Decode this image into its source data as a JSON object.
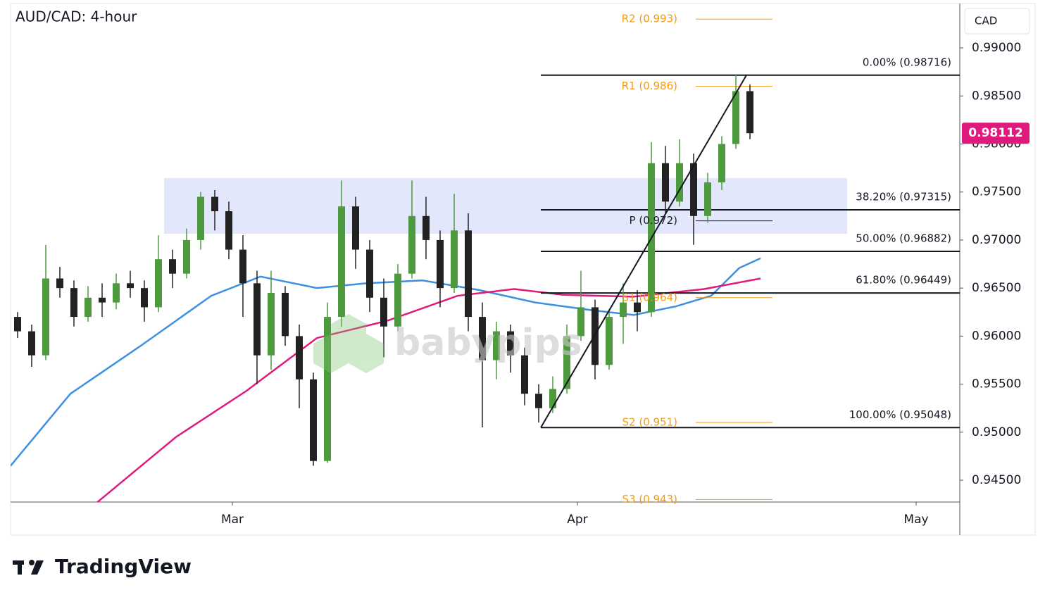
{
  "chart_data": {
    "type": "candlestick",
    "title": "AUD/CAD: 4-hour",
    "currency": "CAD",
    "x": [
      0,
      1,
      2,
      3,
      4,
      5,
      6,
      7,
      8,
      9,
      10,
      11,
      12,
      13,
      14,
      15,
      16,
      17,
      18,
      19,
      20,
      21,
      22,
      23,
      24,
      25,
      26,
      27,
      28,
      29,
      30,
      31,
      32,
      33,
      34,
      35,
      36,
      37,
      38,
      39,
      40,
      41,
      42,
      43,
      44,
      45,
      46,
      47,
      48,
      49,
      50,
      51,
      52
    ],
    "open": [
      0.962,
      0.9605,
      0.958,
      0.966,
      0.965,
      0.962,
      0.964,
      0.9635,
      0.9655,
      0.965,
      0.963,
      0.968,
      0.9665,
      0.97,
      0.9745,
      0.973,
      0.969,
      0.9655,
      0.958,
      0.9645,
      0.96,
      0.9555,
      0.947,
      0.962,
      0.9735,
      0.969,
      0.964,
      0.961,
      0.9665,
      0.9725,
      0.97,
      0.965,
      0.971,
      0.962,
      0.9575,
      0.9605,
      0.958,
      0.954,
      0.9525,
      0.9545,
      0.96,
      0.963,
      0.957,
      0.962,
      0.9635,
      0.9625,
      0.978,
      0.974,
      0.978,
      0.9725,
      0.976,
      0.98,
      0.9855
    ],
    "high": [
      0.9625,
      0.9612,
      0.9695,
      0.9672,
      0.9658,
      0.9652,
      0.9655,
      0.9665,
      0.9668,
      0.9658,
      0.9705,
      0.969,
      0.9712,
      0.975,
      0.9752,
      0.974,
      0.9705,
      0.9668,
      0.9668,
      0.9652,
      0.9612,
      0.9562,
      0.9635,
      0.9762,
      0.9745,
      0.97,
      0.966,
      0.9675,
      0.9762,
      0.9745,
      0.971,
      0.9748,
      0.9728,
      0.9635,
      0.9615,
      0.9612,
      0.9588,
      0.955,
      0.9558,
      0.9612,
      0.9668,
      0.9638,
      0.9628,
      0.9655,
      0.9648,
      0.9802,
      0.9798,
      0.9805,
      0.979,
      0.977,
      0.9808,
      0.9872,
      0.9862
    ],
    "low": [
      0.9598,
      0.9568,
      0.9575,
      0.964,
      0.961,
      0.9615,
      0.962,
      0.9628,
      0.964,
      0.9615,
      0.9625,
      0.965,
      0.966,
      0.969,
      0.971,
      0.968,
      0.962,
      0.955,
      0.9565,
      0.959,
      0.9525,
      0.9465,
      0.9468,
      0.961,
      0.967,
      0.9625,
      0.9578,
      0.9605,
      0.966,
      0.968,
      0.963,
      0.9645,
      0.9605,
      0.9505,
      0.9555,
      0.9562,
      0.9528,
      0.951,
      0.952,
      0.954,
      0.9595,
      0.9555,
      0.9565,
      0.9592,
      0.9605,
      0.962,
      0.9728,
      0.9735,
      0.9695,
      0.9718,
      0.9752,
      0.9795,
      0.9805
    ],
    "close": [
      0.9605,
      0.958,
      0.966,
      0.965,
      0.962,
      0.964,
      0.9635,
      0.9655,
      0.965,
      0.963,
      0.968,
      0.9665,
      0.97,
      0.9745,
      0.973,
      0.969,
      0.9655,
      0.958,
      0.9645,
      0.96,
      0.9555,
      0.947,
      0.962,
      0.9735,
      0.969,
      0.964,
      0.961,
      0.9665,
      0.9725,
      0.97,
      0.965,
      0.971,
      0.962,
      0.9575,
      0.9605,
      0.958,
      0.954,
      0.9525,
      0.9545,
      0.96,
      0.963,
      0.957,
      0.962,
      0.9635,
      0.9625,
      0.978,
      0.974,
      0.978,
      0.9725,
      0.976,
      0.98,
      0.9855,
      0.98112
    ],
    "up_color": "#4e9a3e",
    "down_color": "#222222",
    "xlim": [
      -0.5,
      66.9
    ],
    "ylim": [
      0.94273,
      0.99462
    ],
    "xticks": [
      {
        "value": 15.25,
        "label": "Mar"
      },
      {
        "value": 39.75,
        "label": "Apr"
      },
      {
        "value": 63.8,
        "label": "May"
      }
    ],
    "yticks": [
      {
        "value": 0.99,
        "label": "0.99000"
      },
      {
        "value": 0.985,
        "label": "0.98500"
      },
      {
        "value": 0.98,
        "label": "0.98000"
      },
      {
        "value": 0.975,
        "label": "0.97500"
      },
      {
        "value": 0.97,
        "label": "0.97000"
      },
      {
        "value": 0.965,
        "label": "0.96500"
      },
      {
        "value": 0.96,
        "label": "0.96000"
      },
      {
        "value": 0.955,
        "label": "0.95500"
      },
      {
        "value": 0.95,
        "label": "0.95000"
      },
      {
        "value": 0.945,
        "label": "0.94500"
      }
    ],
    "moving_averages": [
      {
        "color": "#3d8fe0",
        "x": [
          -0.5,
          3.75,
          8.75,
          13.75,
          17.25,
          21.25,
          24.75,
          28.75,
          32.75,
          36.75,
          40.75,
          43.75,
          46.75,
          49.25,
          51.25,
          52.75
        ],
        "values": [
          0.9465,
          0.954,
          0.959,
          0.9642,
          0.9662,
          0.965,
          0.9655,
          0.9658,
          0.9648,
          0.9635,
          0.9627,
          0.9622,
          0.9631,
          0.9642,
          0.9671,
          0.9681
        ]
      },
      {
        "color": "#e0197d",
        "x": [
          5.65,
          11.25,
          16.25,
          21.25,
          26.25,
          31.25,
          35.25,
          38.75,
          43.75,
          48.75,
          52.75
        ],
        "values": [
          0.9427,
          0.9495,
          0.9543,
          0.9598,
          0.9616,
          0.9642,
          0.9649,
          0.9643,
          0.9641,
          0.9649,
          0.966
        ]
      }
    ],
    "zone": {
      "x": [
        10.4,
        58.9
      ],
      "y": [
        0.97065,
        0.97644
      ],
      "color": "#dfe4fb"
    },
    "trendline": {
      "x": [
        37.15,
        51.75
      ],
      "values": [
        0.95048,
        0.98716
      ]
    },
    "fib_start": 37.15,
    "fib_levels": [
      {
        "label": "0.00% (0.98716)",
        "value": 0.98716
      },
      {
        "label": "38.20% (0.97315)",
        "value": 0.97315
      },
      {
        "label": "50.00% (0.96882)",
        "value": 0.96882
      },
      {
        "label": "61.80% (0.96449)",
        "value": 0.96449
      },
      {
        "label": "100.00% (0.95048)",
        "value": 0.95048
      }
    ],
    "pivot_x": [
      48.15,
      53.6
    ],
    "pivots": [
      {
        "label": "R2 (0.993)",
        "value": 0.993,
        "color": "#f39c12"
      },
      {
        "label": "R1 (0.986)",
        "value": 0.986,
        "color": "#f39c12"
      },
      {
        "label": "P (0.972)",
        "value": 0.972,
        "color": "#222222"
      },
      {
        "label": "S1 (0.964)",
        "value": 0.964,
        "color": "#f39c12"
      },
      {
        "label": "S2 (0.951)",
        "value": 0.951,
        "color": "#f39c12"
      },
      {
        "label": "S3 (0.943)",
        "value": 0.943,
        "color": "#f39c12"
      }
    ],
    "last_price": 0.98112,
    "last_color": "#e0197d"
  },
  "watermark": "babypips",
  "brand": "TradingView"
}
